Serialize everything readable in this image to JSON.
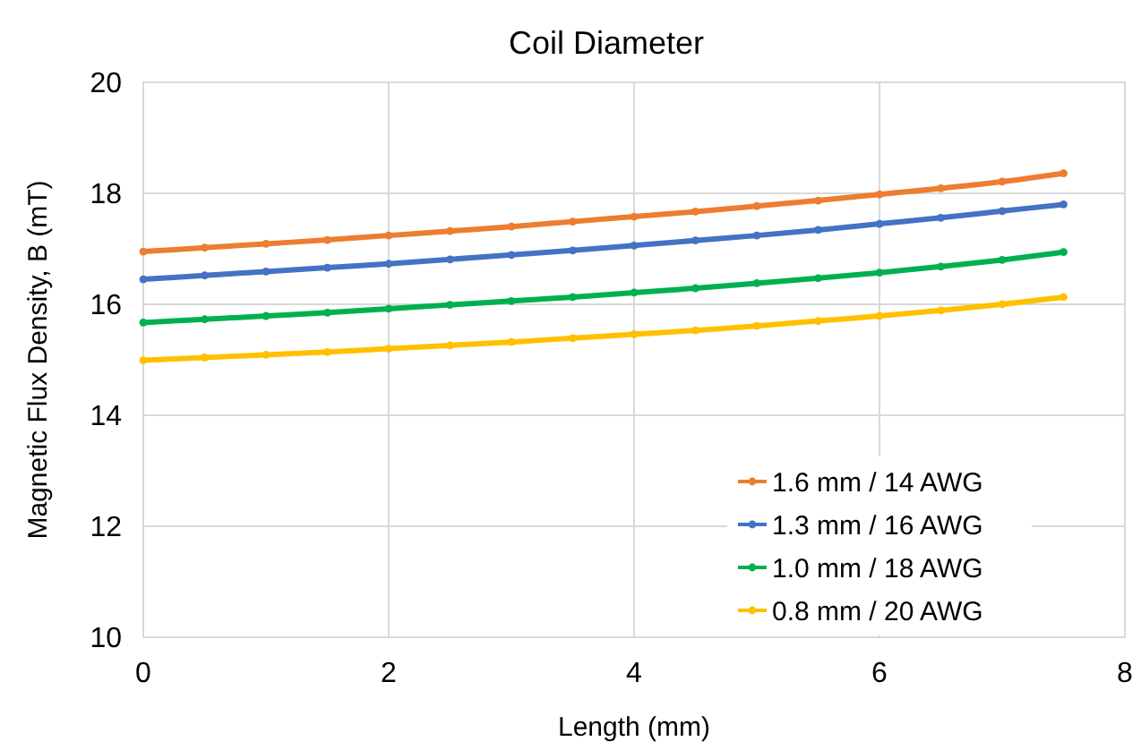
{
  "chart_data": {
    "type": "line",
    "title": "Coil Diameter",
    "xlabel": "Length (mm)",
    "ylabel": "Magnetic Flux Density, B (mT)",
    "x": [
      0,
      0.5,
      1,
      1.5,
      2,
      2.5,
      3,
      3.5,
      4,
      4.5,
      5,
      5.5,
      6,
      6.5,
      7,
      7.5
    ],
    "series": [
      {
        "name": "1.6 mm / 14 AWG",
        "color": "#ed7d31",
        "values": [
          16.95,
          17.02,
          17.09,
          17.16,
          17.24,
          17.32,
          17.4,
          17.49,
          17.58,
          17.67,
          17.77,
          17.87,
          17.98,
          18.09,
          18.21,
          18.36
        ]
      },
      {
        "name": "1.3 mm / 16 AWG",
        "color": "#4472c4",
        "values": [
          16.45,
          16.52,
          16.59,
          16.66,
          16.73,
          16.81,
          16.89,
          16.97,
          17.06,
          17.15,
          17.24,
          17.34,
          17.45,
          17.56,
          17.68,
          17.8
        ]
      },
      {
        "name": "1.0 mm / 18 AWG",
        "color": "#00b050",
        "values": [
          15.67,
          15.73,
          15.79,
          15.85,
          15.92,
          15.99,
          16.06,
          16.13,
          16.21,
          16.29,
          16.38,
          16.47,
          16.57,
          16.68,
          16.8,
          16.94
        ]
      },
      {
        "name": "0.8 mm / 20 AWG",
        "color": "#ffc000",
        "values": [
          14.99,
          15.04,
          15.09,
          15.14,
          15.2,
          15.26,
          15.32,
          15.39,
          15.46,
          15.53,
          15.61,
          15.7,
          15.79,
          15.89,
          16,
          16.13
        ]
      }
    ],
    "xlim": [
      0,
      8
    ],
    "xticks": [
      0,
      2,
      4,
      6,
      8
    ],
    "ylim": [
      10,
      20
    ],
    "yticks": [
      10,
      12,
      14,
      16,
      18,
      20
    ],
    "grid": true,
    "legend": "bottom right",
    "marker": "circle",
    "line_style": "solid"
  }
}
